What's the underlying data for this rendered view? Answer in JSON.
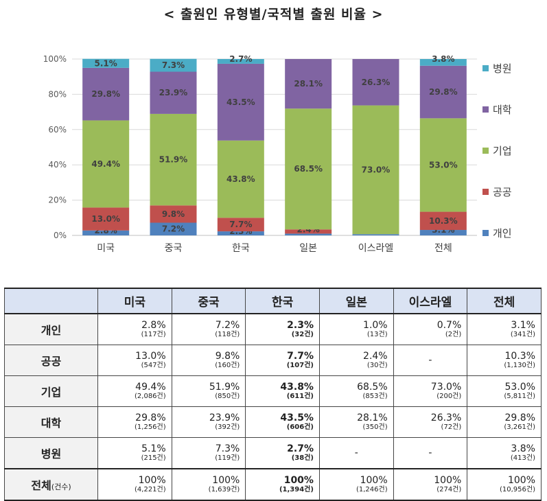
{
  "title": "< 출원인 유형별/국적별 출원 비율 >",
  "chart_data": {
    "type": "bar",
    "stacked": true,
    "categories": [
      "미국",
      "중국",
      "한국",
      "일본",
      "이스라엘",
      "전체"
    ],
    "y_ticks": [
      "0%",
      "20%",
      "40%",
      "60%",
      "80%",
      "100%"
    ],
    "ylim": [
      0,
      100
    ],
    "series": [
      {
        "name": "개인",
        "color": "#4f81bd",
        "values": [
          2.8,
          7.2,
          2.3,
          1.0,
          0.7,
          3.1
        ],
        "labels": [
          "2.8%",
          "7.2%",
          "2.3%",
          "",
          "",
          "3.1%"
        ]
      },
      {
        "name": "공공",
        "color": "#c0504d",
        "values": [
          13.0,
          9.8,
          7.7,
          2.4,
          0,
          10.3
        ],
        "labels": [
          "13.0%",
          "9.8%",
          "7.7%",
          "2.4%",
          "",
          "10.3%"
        ]
      },
      {
        "name": "기업",
        "color": "#9bbb59",
        "values": [
          49.4,
          51.9,
          43.8,
          68.5,
          73.0,
          53.0
        ],
        "labels": [
          "49.4%",
          "51.9%",
          "43.8%",
          "68.5%",
          "73.0%",
          "53.0%"
        ]
      },
      {
        "name": "대학",
        "color": "#8064a2",
        "values": [
          29.8,
          23.9,
          43.5,
          28.1,
          26.3,
          29.8
        ],
        "labels": [
          "29.8%",
          "23.9%",
          "43.5%",
          "28.1%",
          "26.3%",
          "29.8%"
        ]
      },
      {
        "name": "병원",
        "color": "#4bacc6",
        "values": [
          5.1,
          7.3,
          2.7,
          0,
          0,
          3.8
        ],
        "labels": [
          "5.1%",
          "7.3%",
          "2.7%",
          "",
          "",
          "3.8%"
        ]
      }
    ],
    "legend_order": [
      "병원",
      "대학",
      "기업",
      "공공",
      "개인"
    ],
    "legend_position": "right"
  },
  "table": {
    "headers": [
      "미국",
      "중국",
      "한국",
      "일본",
      "이스라엘",
      "전체"
    ],
    "rows": [
      {
        "label": "개인",
        "cells": [
          {
            "pct": "2.8%",
            "cnt": "(117건)"
          },
          {
            "pct": "7.2%",
            "cnt": "(118건)"
          },
          {
            "pct": "2.3%",
            "cnt": "(32건)"
          },
          {
            "pct": "1.0%",
            "cnt": "(13건)"
          },
          {
            "pct": "0.7%",
            "cnt": "(2건)"
          },
          {
            "pct": "3.1%",
            "cnt": "(341건)"
          }
        ]
      },
      {
        "label": "공공",
        "cells": [
          {
            "pct": "13.0%",
            "cnt": "(547건)"
          },
          {
            "pct": "9.8%",
            "cnt": "(160건)"
          },
          {
            "pct": "7.7%",
            "cnt": "(107건)"
          },
          {
            "pct": "2.4%",
            "cnt": "(30건)"
          },
          {
            "dash": "-"
          },
          {
            "pct": "10.3%",
            "cnt": "(1,130건)"
          }
        ]
      },
      {
        "label": "기업",
        "cells": [
          {
            "pct": "49.4%",
            "cnt": "(2,086건)"
          },
          {
            "pct": "51.9%",
            "cnt": "(850건)"
          },
          {
            "pct": "43.8%",
            "cnt": "(611건)"
          },
          {
            "pct": "68.5%",
            "cnt": "(853건)"
          },
          {
            "pct": "73.0%",
            "cnt": "(200건)"
          },
          {
            "pct": "53.0%",
            "cnt": "(5,811건)"
          }
        ]
      },
      {
        "label": "대학",
        "cells": [
          {
            "pct": "29.8%",
            "cnt": "(1,256건)"
          },
          {
            "pct": "23.9%",
            "cnt": "(392건)"
          },
          {
            "pct": "43.5%",
            "cnt": "(606건)"
          },
          {
            "pct": "28.1%",
            "cnt": "(350건)"
          },
          {
            "pct": "26.3%",
            "cnt": "(72건)"
          },
          {
            "pct": "29.8%",
            "cnt": "(3,261건)"
          }
        ]
      },
      {
        "label": "병원",
        "cells": [
          {
            "pct": "5.1%",
            "cnt": "(215건)"
          },
          {
            "pct": "7.3%",
            "cnt": "(119건)"
          },
          {
            "pct": "2.7%",
            "cnt": "(38건)"
          },
          {
            "dash": "-"
          },
          {
            "dash": "-"
          },
          {
            "pct": "3.8%",
            "cnt": "(413건)"
          }
        ]
      }
    ],
    "total": {
      "label": "전체",
      "label_sub": "(건수)",
      "cells": [
        {
          "pct": "100%",
          "cnt": "(4,221건)"
        },
        {
          "pct": "100%",
          "cnt": "(1,639건)"
        },
        {
          "pct": "100%",
          "cnt": "(1,394건)"
        },
        {
          "pct": "100%",
          "cnt": "(1,246건)"
        },
        {
          "pct": "100%",
          "cnt": "(274건)"
        },
        {
          "pct": "100%",
          "cnt": "(10,956건)"
        }
      ]
    },
    "bold_column": 2
  }
}
